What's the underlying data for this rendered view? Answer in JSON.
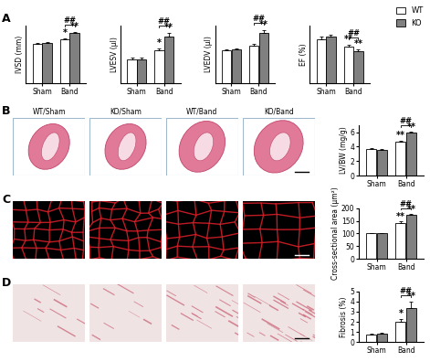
{
  "panel_labels": [
    "A",
    "B",
    "C",
    "D"
  ],
  "image_titles": [
    "WT/Sham",
    "KO/Sham",
    "WT/Band",
    "KO/Band"
  ],
  "chart_data": [
    {
      "type": "bar",
      "y_label": "IVSD (mm)",
      "categories": [
        "Sham",
        "Band"
      ],
      "tick_labels": "x",
      "ylim": [
        0,
        1.1
      ],
      "series": [
        {
          "name": "WT",
          "color": "#ffffff",
          "values": [
            0.74,
            0.83
          ],
          "errors": [
            0.02,
            0.03
          ]
        },
        {
          "name": "KO",
          "color": "#808080",
          "values": [
            0.76,
            0.96
          ],
          "errors": [
            0.02,
            0.02
          ]
        }
      ],
      "significance": [
        {
          "category": "Band",
          "series": "WT",
          "text": "*"
        },
        {
          "category": "Band",
          "series": "KO",
          "text": "**"
        }
      ],
      "comparison": {
        "category": "Band",
        "text": "##"
      }
    },
    {
      "type": "bar",
      "y_label": "LVESV (μl)",
      "categories": [
        "Sham",
        "Band"
      ],
      "tick_labels": "x",
      "ylim": [
        0,
        80
      ],
      "series": [
        {
          "name": "WT",
          "color": "#ffffff",
          "values": [
            33,
            45
          ],
          "errors": [
            2,
            3
          ]
        },
        {
          "name": "KO",
          "color": "#808080",
          "values": [
            33,
            64
          ],
          "errors": [
            2,
            6
          ]
        }
      ],
      "significance": [
        {
          "category": "Band",
          "series": "WT",
          "text": "*"
        },
        {
          "category": "Band",
          "series": "KO",
          "text": "**"
        }
      ],
      "comparison": {
        "category": "Band",
        "text": "##"
      }
    },
    {
      "type": "bar",
      "y_label": "LVEDV (μl)",
      "categories": [
        "Sham",
        "Band"
      ],
      "tick_labels": "x",
      "ylim": [
        0,
        110
      ],
      "series": [
        {
          "name": "WT",
          "color": "#ffffff",
          "values": [
            62,
            72
          ],
          "errors": [
            2,
            3
          ]
        },
        {
          "name": "KO",
          "color": "#808080",
          "values": [
            64,
            95
          ],
          "errors": [
            2,
            6
          ]
        }
      ],
      "significance": [
        {
          "category": "Band",
          "series": "KO",
          "text": "**"
        }
      ],
      "comparison": {
        "category": "Band",
        "text": "##"
      }
    },
    {
      "type": "bar",
      "y_label": "EF (%)",
      "categories": [
        "Sham",
        "Band"
      ],
      "tick_labels": "x",
      "ylim": [
        0,
        60
      ],
      "legend": "upper right",
      "series": [
        {
          "name": "WT",
          "color": "#ffffff",
          "values": [
            46,
            38
          ],
          "errors": [
            2,
            2
          ]
        },
        {
          "name": "KO",
          "color": "#808080",
          "values": [
            48,
            33
          ],
          "errors": [
            2,
            2
          ]
        }
      ],
      "significance": [
        {
          "category": "Band",
          "series": "WT",
          "text": "**"
        },
        {
          "category": "Band",
          "series": "KO",
          "text": "**"
        }
      ],
      "comparison": {
        "category": "Band",
        "text": "##"
      }
    },
    {
      "type": "bar",
      "y_label": "LV/BW (mg/g)",
      "categories": [
        "Sham",
        "Band"
      ],
      "ylim": [
        0,
        7
      ],
      "yticks": [
        0,
        2,
        4,
        6
      ],
      "series": [
        {
          "name": "WT",
          "color": "#ffffff",
          "values": [
            3.7,
            4.7
          ],
          "errors": [
            0.1,
            0.15
          ]
        },
        {
          "name": "KO",
          "color": "#808080",
          "values": [
            3.6,
            5.9
          ],
          "errors": [
            0.1,
            0.15
          ]
        }
      ],
      "significance": [
        {
          "category": "Band",
          "series": "WT",
          "text": "**"
        },
        {
          "category": "Band",
          "series": "KO",
          "text": "**"
        }
      ],
      "comparison": {
        "category": "Band",
        "text": "##"
      }
    },
    {
      "type": "bar",
      "y_label": "Cross-sectional area (μm²)",
      "categories": [
        "Sham",
        "Band"
      ],
      "ylim": [
        0,
        200
      ],
      "yticks": [
        0,
        50,
        100,
        150,
        200
      ],
      "series": [
        {
          "name": "WT",
          "color": "#ffffff",
          "values": [
            100,
            142
          ],
          "errors": [
            2,
            6
          ]
        },
        {
          "name": "KO",
          "color": "#808080",
          "values": [
            100,
            172
          ],
          "errors": [
            2,
            4
          ]
        }
      ],
      "significance": [
        {
          "category": "Band",
          "series": "WT",
          "text": "**"
        },
        {
          "category": "Band",
          "series": "KO",
          "text": "**"
        }
      ],
      "comparison": {
        "category": "Band",
        "text": "##"
      }
    },
    {
      "type": "bar",
      "y_label": "Fibrosis (%)",
      "categories": [
        "Sham",
        "Band"
      ],
      "ylim": [
        0,
        5
      ],
      "yticks": [
        0,
        1,
        2,
        3,
        4,
        5
      ],
      "series": [
        {
          "name": "WT",
          "color": "#ffffff",
          "values": [
            0.7,
            2.0
          ],
          "errors": [
            0.1,
            0.3
          ]
        },
        {
          "name": "KO",
          "color": "#808080",
          "values": [
            0.8,
            3.4
          ],
          "errors": [
            0.1,
            0.6
          ]
        }
      ],
      "significance": [
        {
          "category": "Band",
          "series": "WT",
          "text": "*"
        },
        {
          "category": "Band",
          "series": "KO",
          "text": "**"
        }
      ],
      "comparison": {
        "category": "Band",
        "text": "##"
      }
    }
  ]
}
